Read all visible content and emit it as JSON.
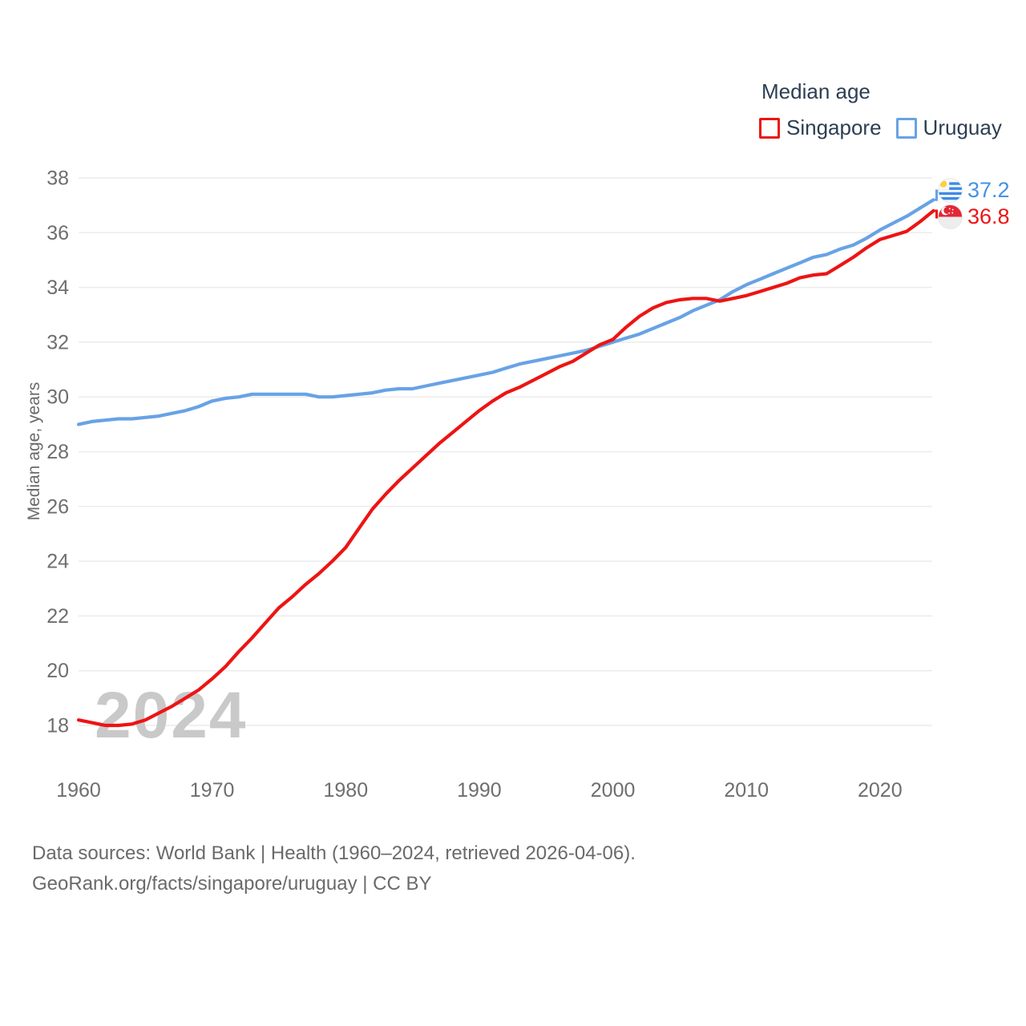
{
  "legend": {
    "title": "Median age",
    "items": [
      {
        "label": "Singapore",
        "color": "#ed1414"
      },
      {
        "label": "Uruguay",
        "color": "#68a2e6"
      }
    ]
  },
  "chart": {
    "watermark": "2024",
    "y_axis_title": "Median age, years"
  },
  "end_labels": [
    {
      "country": "Uruguay",
      "value": "37.2",
      "color": "#4691e4",
      "flag": "uruguay-flag"
    },
    {
      "country": "Singapore",
      "value": "36.8",
      "color": "#ed1414",
      "flag": "singapore-flag"
    }
  ],
  "footer": {
    "line1": "Data sources: World Bank | Health (1960–2024, retrieved 2026-04-06).",
    "line2": "GeoRank.org/facts/singapore/uruguay | CC BY"
  },
  "chart_data": {
    "type": "line",
    "title": "Median age",
    "xlabel": "",
    "ylabel": "Median age, years",
    "xlim": [
      1960,
      2024
    ],
    "ylim": [
      18,
      38
    ],
    "grid": "horizontal",
    "legend_position": "top-right",
    "x_ticks": [
      1960,
      1970,
      1980,
      1990,
      2000,
      2010,
      2020
    ],
    "y_ticks": [
      18,
      20,
      22,
      24,
      26,
      28,
      30,
      32,
      34,
      36,
      38
    ],
    "x": [
      1960,
      1961,
      1962,
      1963,
      1964,
      1965,
      1966,
      1967,
      1968,
      1969,
      1970,
      1971,
      1972,
      1973,
      1974,
      1975,
      1976,
      1977,
      1978,
      1979,
      1980,
      1981,
      1982,
      1983,
      1984,
      1985,
      1986,
      1987,
      1988,
      1989,
      1990,
      1991,
      1992,
      1993,
      1994,
      1995,
      1996,
      1997,
      1998,
      1999,
      2000,
      2001,
      2002,
      2003,
      2004,
      2005,
      2006,
      2007,
      2008,
      2009,
      2010,
      2011,
      2012,
      2013,
      2014,
      2015,
      2016,
      2017,
      2018,
      2019,
      2020,
      2021,
      2022,
      2023,
      2024
    ],
    "series": [
      {
        "name": "Singapore",
        "color": "#ed1414",
        "end_label": "36.8",
        "values": [
          18.2,
          18.1,
          18.0,
          18.0,
          18.05,
          18.2,
          18.45,
          18.7,
          19.0,
          19.3,
          19.7,
          20.15,
          20.7,
          21.2,
          21.75,
          22.3,
          22.7,
          23.15,
          23.55,
          24.0,
          24.5,
          25.2,
          25.9,
          26.45,
          26.95,
          27.4,
          27.85,
          28.3,
          28.7,
          29.1,
          29.5,
          29.85,
          30.15,
          30.35,
          30.6,
          30.85,
          31.1,
          31.3,
          31.6,
          31.9,
          32.1,
          32.55,
          32.95,
          33.25,
          33.45,
          33.55,
          33.6,
          33.6,
          33.5,
          33.6,
          33.7,
          33.85,
          34.0,
          34.15,
          34.35,
          34.45,
          34.5,
          34.8,
          35.1,
          35.45,
          35.75,
          35.9,
          36.05,
          36.4,
          36.8
        ]
      },
      {
        "name": "Uruguay",
        "color": "#68a2e6",
        "end_label": "37.2",
        "values": [
          29.0,
          29.1,
          29.15,
          29.2,
          29.2,
          29.25,
          29.3,
          29.4,
          29.5,
          29.65,
          29.85,
          29.95,
          30.0,
          30.1,
          30.1,
          30.1,
          30.1,
          30.1,
          30.0,
          30.0,
          30.05,
          30.1,
          30.15,
          30.25,
          30.3,
          30.3,
          30.4,
          30.5,
          30.6,
          30.7,
          30.8,
          30.9,
          31.05,
          31.2,
          31.3,
          31.4,
          31.5,
          31.6,
          31.7,
          31.85,
          32.0,
          32.15,
          32.3,
          32.5,
          32.7,
          32.9,
          33.15,
          33.35,
          33.55,
          33.85,
          34.1,
          34.3,
          34.5,
          34.7,
          34.9,
          35.1,
          35.2,
          35.4,
          35.55,
          35.8,
          36.1,
          36.35,
          36.6,
          36.9,
          37.2
        ]
      }
    ]
  }
}
